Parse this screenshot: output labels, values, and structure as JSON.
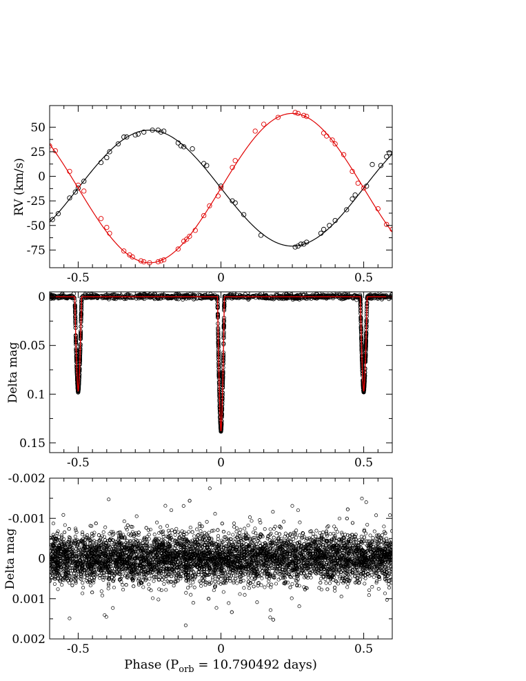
{
  "figure": {
    "xlabel_main": "Phase (P",
    "xlabel_sub": "orb",
    "xlabel_tail": " = 10.790492 days)"
  },
  "chart_data": [
    {
      "type": "scatter",
      "panel": "top",
      "ylabel": "RV (km/s)",
      "xlim": [
        -0.6,
        0.6
      ],
      "ylim": [
        -93,
        72
      ],
      "x_ticks": [
        -0.5,
        0,
        0.5
      ],
      "x_tick_labels": [
        "-0.5",
        "0",
        "0.5"
      ],
      "y_ticks": [
        50,
        25,
        0,
        -25,
        -50,
        -75
      ],
      "y_tick_labels": [
        "50",
        "25",
        "0",
        "-25",
        "-50",
        "-75"
      ],
      "colors": {
        "primary": "#000000",
        "secondary": "#e00000"
      },
      "series": [
        {
          "x": [
            -0.59,
            -0.57,
            -0.53,
            -0.51,
            -0.5,
            -0.48,
            -0.42,
            -0.4,
            -0.39,
            -0.36,
            -0.34,
            -0.33,
            -0.3,
            -0.29,
            -0.27,
            -0.24,
            -0.22,
            -0.21,
            -0.2,
            -0.15,
            -0.14,
            -0.13,
            -0.1,
            -0.06,
            -0.05,
            0.0,
            0.04,
            0.05,
            0.08,
            0.14,
            0.26,
            0.27,
            0.28,
            0.29,
            0.3,
            0.35,
            0.36,
            0.38,
            0.4,
            0.44,
            0.46,
            0.47,
            0.51,
            0.53,
            0.56,
            0.58,
            0.59
          ],
          "y": [
            -44,
            -38,
            -22,
            -16,
            -12,
            -5,
            14,
            19,
            25,
            33,
            40,
            40,
            42,
            43,
            45,
            47,
            47,
            45,
            46,
            34,
            31,
            30,
            28,
            13,
            11,
            -10,
            -25,
            -27,
            -39,
            -60,
            -72,
            -71,
            -69,
            -69,
            -67,
            -58,
            -54,
            -50,
            -45,
            -34,
            -23,
            -19,
            -10,
            12,
            11,
            20,
            24
          ],
          "fit": "primary"
        },
        {
          "x": [
            -0.6,
            -0.58,
            -0.53,
            -0.5,
            -0.48,
            -0.42,
            -0.4,
            -0.39,
            -0.34,
            -0.32,
            -0.31,
            -0.28,
            -0.27,
            -0.25,
            -0.22,
            -0.21,
            -0.2,
            -0.15,
            -0.13,
            -0.12,
            -0.11,
            -0.09,
            -0.06,
            -0.04,
            -0.01,
            0.0,
            0.04,
            0.05,
            0.12,
            0.15,
            0.2,
            0.26,
            0.27,
            0.29,
            0.3,
            0.36,
            0.37,
            0.39,
            0.4,
            0.43,
            0.46,
            0.48,
            0.5,
            0.55,
            0.58,
            0.6
          ],
          "y": [
            31,
            26,
            5,
            -9,
            -15,
            -43,
            -52,
            -58,
            -76,
            -80,
            -82,
            -86,
            -87,
            -88,
            -87,
            -86,
            -85,
            -74,
            -66,
            -64,
            -61,
            -55,
            -40,
            -30,
            -20,
            -12,
            9,
            16,
            46,
            53,
            60,
            65,
            64,
            62,
            61,
            44,
            41,
            37,
            33,
            22,
            5,
            -7,
            -12,
            -33,
            -49,
            -54
          ],
          "fit": "secondary"
        }
      ]
    },
    {
      "type": "line",
      "panel": "middle",
      "ylabel": "Delta mag",
      "xlim": [
        -0.6,
        0.6
      ],
      "ylim": [
        0.16,
        -0.005
      ],
      "x_ticks": [
        -0.5,
        0,
        0.5
      ],
      "x_tick_labels": [
        "-0.5",
        "0",
        "0.5"
      ],
      "y_ticks": [
        0,
        0.05,
        0.1,
        0.15
      ],
      "y_tick_labels": [
        "0",
        "0.05",
        "0.1",
        "0.15"
      ],
      "eclipses": [
        {
          "phase": -0.5,
          "depth": 0.097,
          "halfwidth": 0.012
        },
        {
          "phase": 0.0,
          "depth": 0.138,
          "halfwidth": 0.012
        },
        {
          "phase": 0.5,
          "depth": 0.097,
          "halfwidth": 0.012
        }
      ],
      "colors": {
        "data": "#000000",
        "model": "#e00000"
      }
    },
    {
      "type": "scatter",
      "panel": "bottom",
      "ylabel": "Delta mag",
      "xlim": [
        -0.6,
        0.6
      ],
      "ylim": [
        0.002,
        -0.002
      ],
      "x_ticks": [
        -0.5,
        0,
        0.5
      ],
      "x_tick_labels": [
        "-0.5",
        "0",
        "0.5"
      ],
      "y_ticks": [
        -0.002,
        -0.001,
        0,
        0.001,
        0.002
      ],
      "y_tick_labels": [
        "-0.002",
        "-0.001",
        "0",
        "0.001",
        "0.002"
      ],
      "residual_scatter": 0.0003,
      "colors": {
        "data": "#000000"
      }
    }
  ]
}
